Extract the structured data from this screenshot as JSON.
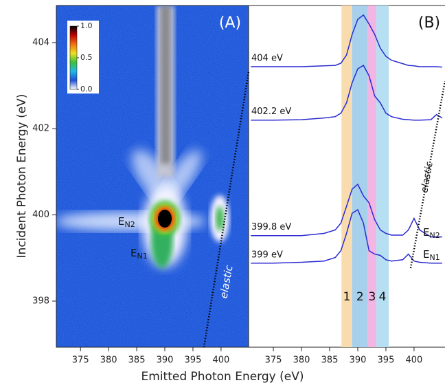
{
  "chart_data": [
    {
      "type": "heatmap",
      "panel_label": "(A)",
      "xlabel": "Emitted Photon Energy (eV)",
      "ylabel": "Incident Photon Energy (eV)",
      "xlim": [
        370.7,
        404.9
      ],
      "xticks": [
        375,
        380,
        385,
        390,
        395,
        400
      ],
      "ylim": [
        396.93,
        404.86
      ],
      "yticks": [
        398,
        400,
        402,
        404
      ],
      "colorbar": {
        "lim": [
          0,
          1
        ],
        "ticks": [
          {
            "value": 0,
            "label": "0.0"
          },
          {
            "value": 0.5,
            "label": "0.5"
          },
          {
            "value": 1,
            "label": "1.0"
          }
        ],
        "colormap": [
          "#ffffff",
          "#1f4fd8",
          "#20b8e8",
          "#3cc03c",
          "#f0e020",
          "#f07010",
          "#c00000",
          "#000000"
        ]
      },
      "annotations": [
        {
          "text": "E",
          "sub": "N2"
        },
        {
          "text": "E",
          "sub": "N1"
        },
        {
          "text": "elastic"
        }
      ]
    },
    {
      "type": "line",
      "panel_label": "(B)",
      "xlim": [
        370.6,
        405.5
      ],
      "xticks": [
        375,
        380,
        385,
        390,
        395,
        400
      ],
      "ylim": [
        396.93,
        404.86
      ],
      "x": [
        371,
        375,
        380,
        384,
        386,
        387,
        388,
        389,
        390,
        391,
        392,
        393,
        394,
        395,
        396,
        398,
        399,
        400,
        401,
        403,
        404,
        405
      ],
      "series": [
        {
          "name": "404 eV",
          "color": "#2a2ad0",
          "values": [
            403.44,
            403.44,
            403.44,
            403.46,
            403.47,
            403.52,
            403.71,
            404.19,
            404.54,
            404.64,
            404.43,
            404.19,
            403.87,
            403.68,
            403.59,
            403.51,
            403.47,
            403.46,
            403.44,
            403.44,
            403.44,
            403.43
          ]
        },
        {
          "name": "402.2 eV",
          "color": "#2a2ad0",
          "values": [
            402.2,
            402.2,
            402.21,
            402.25,
            402.28,
            402.36,
            402.6,
            403.07,
            403.39,
            403.47,
            403.23,
            402.76,
            402.6,
            402.36,
            402.28,
            402.22,
            402.21,
            402.2,
            402.2,
            402.21,
            402.33,
            402.25
          ]
        },
        {
          "name": "399.8 eV",
          "color": "#2a2ad0",
          "values": [
            399.52,
            399.52,
            399.52,
            399.57,
            399.65,
            399.81,
            400.2,
            400.6,
            400.71,
            400.44,
            400.28,
            399.89,
            399.65,
            399.57,
            399.53,
            399.53,
            399.65,
            399.92,
            399.65,
            399.49,
            399.49,
            399.49
          ]
        },
        {
          "name": "399 eV",
          "color": "#2a2ad0",
          "values": [
            398.88,
            398.88,
            398.9,
            398.93,
            399.01,
            399.17,
            399.57,
            400.04,
            400.12,
            399.81,
            399.17,
            399.09,
            399.06,
            398.96,
            398.93,
            398.96,
            399.09,
            398.93,
            398.9,
            398.88,
            398.88,
            398.88
          ]
        }
      ],
      "bands": [
        {
          "label": "1",
          "range": [
            387.1,
            389.0
          ],
          "color": "#f9dcae"
        },
        {
          "label": "2",
          "range": [
            389.0,
            391.8
          ],
          "color": "#a6d0ec"
        },
        {
          "label": "3",
          "range": [
            391.8,
            393.3
          ],
          "color": "#f2b6e4"
        },
        {
          "label": "4",
          "range": [
            393.3,
            395.5
          ],
          "color": "#b6dff2"
        }
      ],
      "annotations": [
        {
          "text": "E",
          "sub": "N2"
        },
        {
          "text": "E",
          "sub": "N1"
        },
        {
          "text": "elastic"
        }
      ]
    }
  ]
}
